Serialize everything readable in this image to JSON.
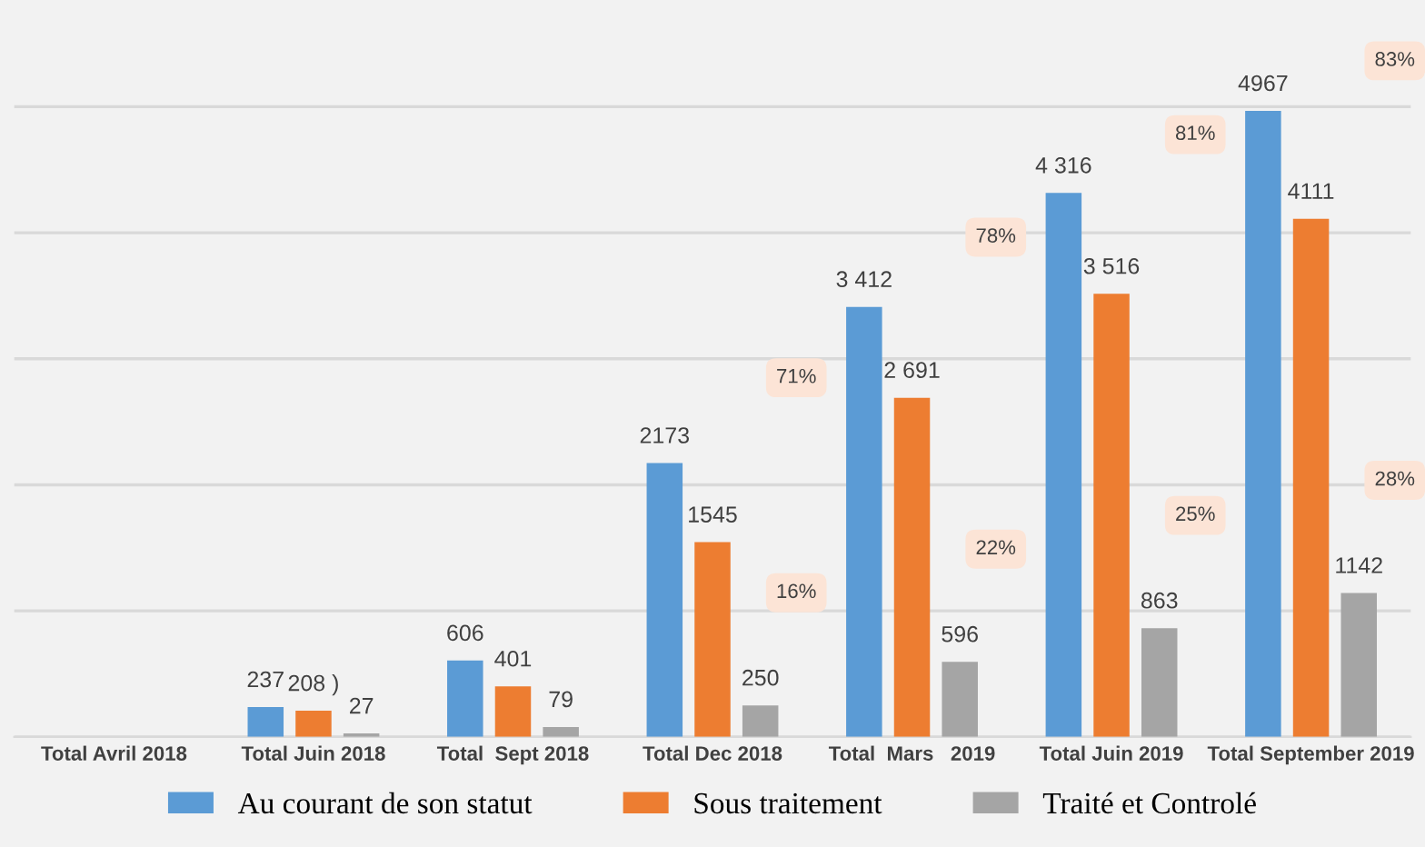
{
  "chart_data": {
    "type": "bar",
    "categories": [
      "Total Avril 2018",
      "Total Juin 2018",
      "Total  Sept 2018",
      "Total Dec 2018",
      "Total  Mars   2019",
      "Total Juin 2019",
      "Total September 2019"
    ],
    "series": [
      {
        "name": "Au courant de son statut",
        "color": "#5b9bd5",
        "values": [
          null,
          237,
          606,
          2173,
          3412,
          4316,
          4967
        ],
        "value_labels": [
          null,
          "237",
          "606",
          "2173",
          "3 412",
          "4 316",
          "4967"
        ]
      },
      {
        "name": "Sous traitement",
        "color": "#ed7d31",
        "values": [
          null,
          208,
          401,
          1545,
          2691,
          3516,
          4111
        ],
        "value_labels": [
          null,
          "208 )",
          "401",
          "1545",
          "2 691",
          "3 516",
          "4111"
        ]
      },
      {
        "name": "Traité et Controlé",
        "color": "#a5a5a5",
        "values": [
          null,
          27,
          79,
          250,
          596,
          863,
          1142
        ],
        "value_labels": [
          null,
          "27",
          "79",
          "250",
          "596",
          "863",
          "1142"
        ]
      }
    ],
    "yticks": [
      {
        "value": 0,
        "label": null
      },
      {
        "value": 1000,
        "label": null
      },
      {
        "value": 2000,
        "label": null
      },
      {
        "value": 3000,
        "label": null
      },
      {
        "value": 4000,
        "label": null
      },
      {
        "value": 5000,
        "label": null
      }
    ],
    "grid": "y",
    "legend": "bottom",
    "annotations": [
      "71%",
      "16%",
      "78%",
      "22%",
      "81%",
      "25%",
      "83%",
      "28%"
    ]
  }
}
